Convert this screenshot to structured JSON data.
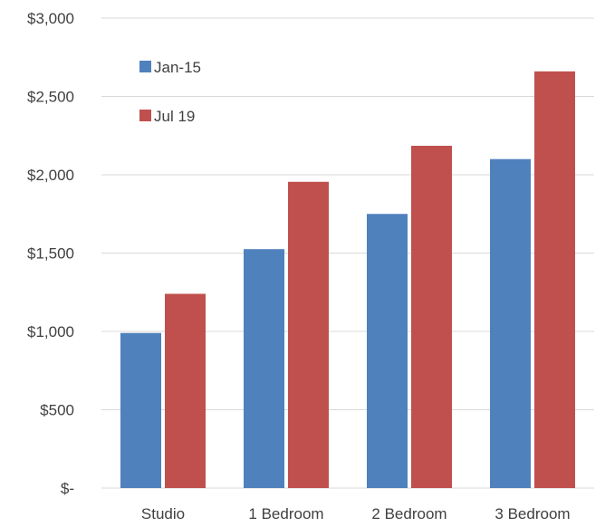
{
  "chart_data": {
    "type": "bar",
    "categories": [
      "Studio",
      "1 Bedroom",
      "2 Bedroom",
      "3 Bedroom"
    ],
    "series": [
      {
        "name": "Jan-15",
        "values": [
          990,
          1525,
          1750,
          2100
        ],
        "color": "#4f81bd"
      },
      {
        "name": "Jul 19",
        "values": [
          1240,
          1955,
          2185,
          2660
        ],
        "color": "#c0504d"
      }
    ],
    "y_ticks": [
      {
        "value": 0,
        "label": "$-"
      },
      {
        "value": 500,
        "label": "$500"
      },
      {
        "value": 1000,
        "label": "$1,000"
      },
      {
        "value": 1500,
        "label": "$1,500"
      },
      {
        "value": 2000,
        "label": "$2,000"
      },
      {
        "value": 2500,
        "label": "$2,500"
      },
      {
        "value": 3000,
        "label": "$3,000"
      }
    ],
    "ylim": [
      0,
      3000
    ],
    "grid": true,
    "legend_position": "top-left",
    "title": "",
    "xlabel": "",
    "ylabel": ""
  }
}
